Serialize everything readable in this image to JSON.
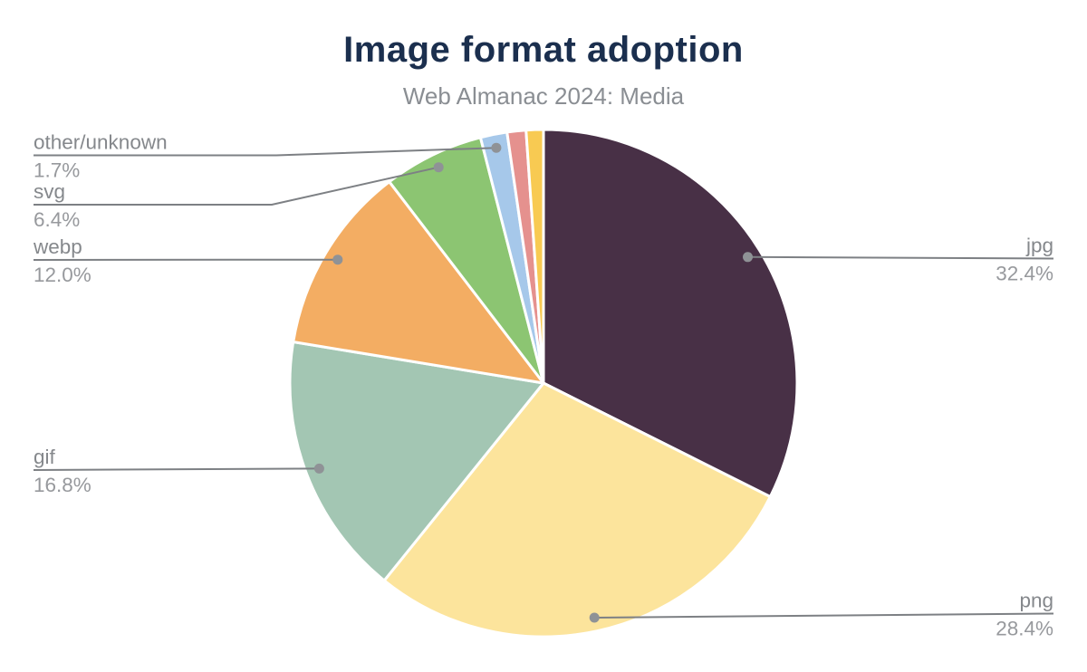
{
  "title": "Image format adoption",
  "subtitle": "Web Almanac 2024: Media",
  "styles": {
    "title_color": "#1b2f4e",
    "subtitle_color": "#8a8e93",
    "label_name_color": "#85888c",
    "label_value_color": "#97999d",
    "connector_color": "#7d8084",
    "dot_color": "#8f9296",
    "slice_separator_color": "#ffffff"
  },
  "chart_data": {
    "type": "pie",
    "title": "Image format adoption",
    "subtitle": "Web Almanac 2024: Media",
    "unit": "%",
    "start_angle_deg": 0,
    "direction": "clockwise",
    "legend_position": "none",
    "slices": [
      {
        "label": "jpg",
        "value": 32.4,
        "display": "32.4%",
        "color": "#483046"
      },
      {
        "label": "png",
        "value": 28.4,
        "display": "28.4%",
        "color": "#fce49c"
      },
      {
        "label": "gif",
        "value": 16.8,
        "display": "16.8%",
        "color": "#a3c6b3"
      },
      {
        "label": "webp",
        "value": 12.0,
        "display": "12.0%",
        "color": "#f3ad63"
      },
      {
        "label": "svg",
        "value": 6.4,
        "display": "6.4%",
        "color": "#8cc572"
      },
      {
        "label": "other/unknown",
        "value": 1.7,
        "display": "1.7%",
        "color": "#a6c8ea"
      },
      {
        "label": "",
        "value": 1.2,
        "display": "",
        "color": "#e5918e"
      },
      {
        "label": "",
        "value": 1.1,
        "display": "",
        "color": "#f8ca52"
      }
    ]
  }
}
